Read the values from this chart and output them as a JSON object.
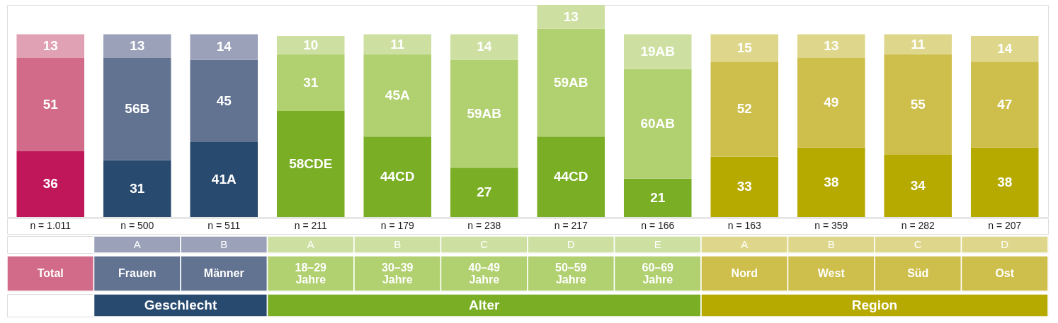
{
  "chart_data": {
    "type": "bar",
    "stacked": true,
    "categories": [
      "Total",
      "Frauen",
      "Männer",
      "18–29 Jahre",
      "30–39 Jahre",
      "40–49 Jahre",
      "50–59 Jahre",
      "60–69 Jahre",
      "Nord",
      "West",
      "Süd",
      "Ost"
    ],
    "series": [
      {
        "values": [
          36,
          31,
          41,
          58,
          44,
          27,
          44,
          21,
          33,
          38,
          34,
          38
        ],
        "value_labels": [
          "36",
          "31",
          "41A",
          "58CDE",
          "44CD",
          "27",
          "44CD",
          "21",
          "33",
          "38",
          "34",
          "38"
        ],
        "colors": [
          "#c0175b",
          "#284a6e",
          "#284a6e",
          "#7aae24",
          "#7aae24",
          "#7aae24",
          "#7aae24",
          "#7aae24",
          "#b6a900",
          "#b6a900",
          "#b6a900",
          "#b6a900"
        ]
      },
      {
        "values": [
          51,
          56,
          45,
          31,
          45,
          59,
          59,
          60,
          52,
          49,
          55,
          47
        ],
        "value_labels": [
          "51",
          "56B",
          "45",
          "31",
          "45A",
          "59AB",
          "59AB",
          "60AB",
          "52",
          "49",
          "55",
          "47"
        ],
        "colors": [
          "#d26b89",
          "#627392",
          "#627392",
          "#b1d070",
          "#b1d070",
          "#b1d070",
          "#b1d070",
          "#b1d070",
          "#cebf4c",
          "#cebf4c",
          "#cebf4c",
          "#cebf4c"
        ]
      },
      {
        "values": [
          13,
          13,
          14,
          10,
          11,
          14,
          13,
          19,
          15,
          13,
          11,
          14
        ],
        "value_labels": [
          "13",
          "13",
          "14",
          "10",
          "11",
          "14",
          "13",
          "19AB",
          "15",
          "13",
          "11",
          "14"
        ],
        "colors": [
          "#e1a1b5",
          "#9aa1b9",
          "#9aa1b9",
          "#cde0a1",
          "#cde0a1",
          "#cde0a1",
          "#cde0a1",
          "#cde0a1",
          "#ded78b",
          "#ded78b",
          "#ded78b",
          "#ded78b"
        ]
      }
    ],
    "annotations": [
      "n = 1.011",
      "n = 500",
      "n = 511",
      "n = 211",
      "n = 179",
      "n = 238",
      "n = 217",
      "n = 166",
      "n = 163",
      "n = 359",
      "n = 282",
      "n = 207",
      "A",
      "B",
      "A",
      "B",
      "C",
      "D",
      "E",
      "A",
      "B",
      "C",
      "D",
      "Geschlecht",
      "Alter",
      "Region"
    ]
  }
}
